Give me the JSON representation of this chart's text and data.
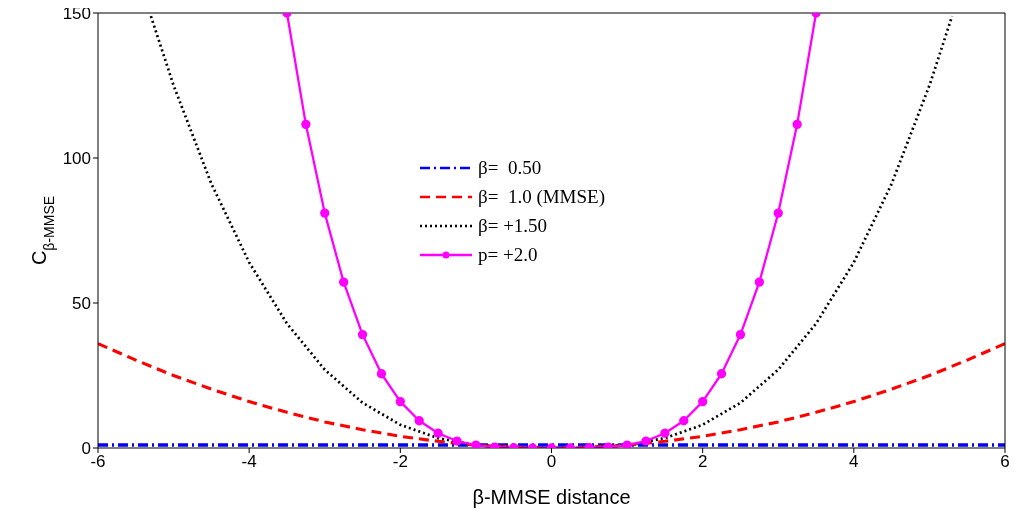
{
  "chart_data": {
    "type": "line",
    "xlabel": "β-MMSE distance",
    "ylabel": "C$_{β-MMSE}$",
    "xlim": [
      -6,
      6
    ],
    "xticks": [
      -6,
      -4,
      -2,
      0,
      2,
      4,
      6
    ],
    "ylim": [
      0,
      150
    ],
    "yticks": [
      0,
      50,
      100,
      150
    ],
    "legend": "center",
    "series": [
      {
        "name": "β=  0.50",
        "color": "#0000ff",
        "line_style": "dashdot",
        "marker": "none",
        "x": [
          -6,
          0,
          6
        ],
        "values": [
          1,
          1,
          1
        ]
      },
      {
        "name": "β=  1.0 (MMSE)",
        "color": "#ff0000",
        "line_style": "dashed",
        "marker": "none",
        "x": [
          -6,
          -5.5,
          -5,
          -4.5,
          -4,
          -3.5,
          -3,
          -2.5,
          -2,
          -1.5,
          -1,
          -0.5,
          0,
          0.5,
          1,
          1.5,
          2,
          2.5,
          3,
          3.5,
          4,
          4.5,
          5,
          5.5,
          6
        ],
        "values": [
          36,
          30.3,
          25,
          20.3,
          16,
          12.3,
          9,
          6.3,
          4,
          2.3,
          1,
          0.3,
          0,
          0.3,
          1,
          2.3,
          4,
          6.3,
          9,
          12.3,
          16,
          20.3,
          25,
          30.3,
          36
        ]
      },
      {
        "name": "β= +1.50",
        "color": "#000000",
        "line_style": "dotted",
        "marker": "none",
        "x": [
          -5.3,
          -5,
          -4.5,
          -4,
          -3.5,
          -3,
          -2.5,
          -2,
          -1.5,
          -1,
          -0.5,
          0,
          0.5,
          1,
          1.5,
          2,
          2.5,
          3,
          3.5,
          4,
          4.5,
          5,
          5.3
        ],
        "values": [
          148.9,
          125,
          91.1,
          64,
          42.9,
          27,
          15.6,
          8,
          3.4,
          1,
          0.1,
          0,
          0.1,
          1,
          3.4,
          8,
          15.6,
          27,
          42.9,
          64,
          91.1,
          125,
          148.9
        ]
      },
      {
        "name": "p= +2.0",
        "color": "#ff00ff",
        "line_style": "solid",
        "marker": "circle",
        "x": [
          -3.5,
          -3.25,
          -3,
          -2.75,
          -2.5,
          -2.25,
          -2,
          -1.75,
          -1.5,
          -1.25,
          -1,
          -0.75,
          -0.5,
          -0.25,
          0,
          0.25,
          0.5,
          0.75,
          1,
          1.25,
          1.5,
          1.75,
          2,
          2.25,
          2.5,
          2.75,
          3,
          3.25,
          3.5
        ],
        "values": [
          150,
          111.6,
          81,
          57.2,
          39.1,
          25.6,
          16,
          9.4,
          5.1,
          2.4,
          1,
          0.3,
          0.1,
          0,
          0,
          0,
          0.1,
          0.3,
          1,
          2.4,
          5.1,
          9.4,
          16,
          25.6,
          39.1,
          57.2,
          81,
          111.6,
          150
        ]
      }
    ]
  }
}
